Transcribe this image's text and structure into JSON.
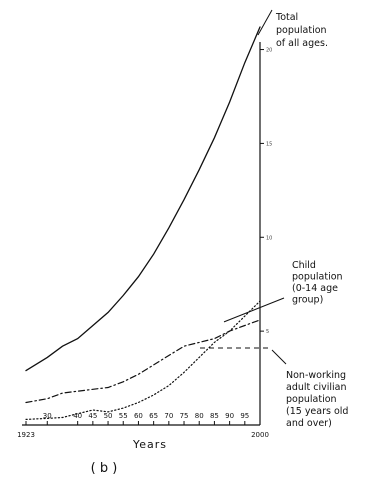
{
  "chart_data": {
    "type": "line",
    "title": "",
    "xlabel": "Years",
    "caption": "( b )",
    "x_ticks": [
      {
        "label": "1923",
        "value": 1923
      },
      {
        "label": "30",
        "value": 1930
      },
      {
        "label": "40",
        "value": 1940
      },
      {
        "label": "45",
        "value": 1945
      },
      {
        "label": "50",
        "value": 1950
      },
      {
        "label": "55",
        "value": 1955
      },
      {
        "label": "60",
        "value": 1960
      },
      {
        "label": "65",
        "value": 1965
      },
      {
        "label": "70",
        "value": 1970
      },
      {
        "label": "75",
        "value": 1975
      },
      {
        "label": "80",
        "value": 1980
      },
      {
        "label": "85",
        "value": 1985
      },
      {
        "label": "90",
        "value": 1990
      },
      {
        "label": "95",
        "value": 1995
      },
      {
        "label": "2000",
        "value": 2000
      }
    ],
    "y_ticks": [
      {
        "label": "5",
        "value": 5
      },
      {
        "label": "10",
        "value": 10
      },
      {
        "label": "15",
        "value": 15
      },
      {
        "label": "20",
        "value": 20
      }
    ],
    "xlim": [
      1923,
      2000
    ],
    "ylim": [
      0,
      22
    ],
    "series": [
      {
        "name": "Total population of all ages",
        "style": "solid",
        "x": [
          1923,
          1930,
          1935,
          1940,
          1945,
          1950,
          1955,
          1960,
          1965,
          1970,
          1975,
          1980,
          1985,
          1990,
          1995,
          2000
        ],
        "y": [
          2.9,
          3.6,
          4.2,
          4.6,
          5.3,
          6.0,
          6.9,
          7.9,
          9.1,
          10.5,
          12.0,
          13.6,
          15.3,
          17.2,
          19.3,
          21.2
        ]
      },
      {
        "name": "Child population (0-14 age group)",
        "style": "dash-dot",
        "x": [
          1923,
          1930,
          1935,
          1940,
          1945,
          1950,
          1955,
          1960,
          1965,
          1970,
          1975,
          1980,
          1985,
          1990,
          1995,
          2000
        ],
        "y": [
          1.2,
          1.4,
          1.7,
          1.8,
          1.9,
          2.0,
          2.3,
          2.7,
          3.2,
          3.7,
          4.2,
          4.4,
          4.6,
          5.0,
          5.3,
          5.6
        ]
      },
      {
        "name": "Non-working adult civilian population (15 years old and over)",
        "style": "dotted",
        "x": [
          1923,
          1930,
          1935,
          1940,
          1945,
          1950,
          1955,
          1960,
          1965,
          1970,
          1975,
          1980,
          1985,
          1990,
          1995,
          2000
        ],
        "y": [
          0.3,
          0.35,
          0.4,
          0.6,
          0.8,
          0.7,
          0.9,
          1.2,
          1.6,
          2.1,
          2.8,
          3.6,
          4.4,
          5.0,
          5.8,
          6.6
        ]
      }
    ],
    "annotations": [
      {
        "series": 0,
        "lines": [
          "Total",
          "population",
          "of all ages."
        ]
      },
      {
        "series": 1,
        "lines": [
          "Child",
          "population",
          "(0-14 age",
          "group)"
        ]
      },
      {
        "series": 2,
        "lines": [
          "Non-working",
          "adult civilian",
          "population",
          "(15 years old",
          "and over)"
        ]
      }
    ],
    "grid": false,
    "legend": "none"
  }
}
